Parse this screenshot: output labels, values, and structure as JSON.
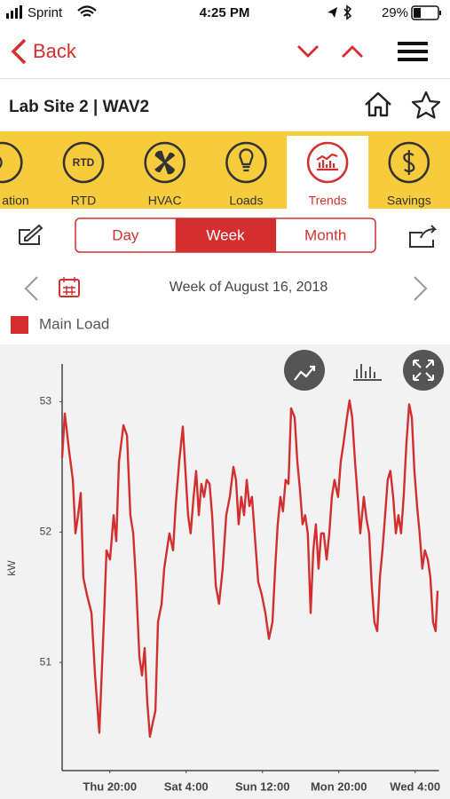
{
  "status": {
    "carrier": "Sprint",
    "time": "4:25 PM",
    "battery": "29%"
  },
  "nav": {
    "back": "Back"
  },
  "header": {
    "title": "Lab Site 2 | WAV2"
  },
  "tabs": [
    {
      "label": "ation"
    },
    {
      "label": "RTD",
      "icon_text": "RTD"
    },
    {
      "label": "HVAC"
    },
    {
      "label": "Loads"
    },
    {
      "label": "Trends"
    },
    {
      "label": "Savings"
    }
  ],
  "active_tab": 4,
  "periods": [
    "Day",
    "Week",
    "Month"
  ],
  "active_period": 1,
  "date_label": "Week of August 16, 2018",
  "chart_data": {
    "type": "line",
    "y_label": "kW",
    "x": [
      0,
      1.1,
      3.0,
      4.5,
      5.6,
      6.7,
      7.8,
      8.9,
      10.4,
      12.3,
      13.8,
      15.6,
      17.5,
      18.6,
      20.1,
      21.6,
      22.7,
      23.8,
      25.7,
      27.2,
      28.6,
      29.8,
      30.9,
      32.4,
      33.5,
      34.6,
      35.7,
      36.8,
      37.9,
      39.1,
      40.2,
      41.7,
      42.8,
      43.9,
      45.0,
      46.5,
      47.6,
      49.1,
      50.6,
      51.7,
      52.8,
      53.9,
      55.1,
      56.2,
      57.3,
      58.4,
      59.5,
      60.6,
      61.8,
      62.9,
      64.4,
      65.8,
      67.3,
      68.8,
      70.3,
      71.8,
      72.9,
      74.0,
      75.1,
      76.3,
      77.4,
      78.5,
      79.6,
      80.7,
      82.2,
      83.7,
      85.2,
      86.7,
      88.2,
      89.3,
      90.4,
      91.5,
      92.6,
      93.7,
      94.9,
      96.0,
      97.5,
      98.6,
      99.7,
      100.8,
      101.9,
      103.0,
      104.2,
      105.3,
      106.4,
      107.5,
      108.6,
      109.7,
      110.9,
      112.0,
      113.1,
      114.2,
      115.7,
      116.8,
      117.9,
      119.4,
      120.5,
      121.6,
      122.8,
      123.9,
      125.0,
      126.5,
      127.6,
      128.7,
      129.8,
      130.9,
      132.1,
      133.2,
      134.3,
      135.4,
      136.5,
      137.6,
      138.8,
      139.9,
      141.0,
      142.1,
      143.2,
      144.3,
      145.5,
      146.6,
      147.7,
      148.8,
      149.9,
      151.0,
      152.1,
      153.3,
      154.4,
      155.5,
      156.6,
      157.4
    ],
    "series": [
      {
        "name": "Main Load",
        "color": "#d32f2f",
        "values": [
          52.57,
          52.91,
          52.61,
          52.4,
          51.99,
          52.13,
          52.3,
          51.65,
          51.52,
          51.38,
          50.9,
          50.46,
          51.31,
          51.86,
          51.79,
          52.13,
          51.93,
          52.54,
          52.82,
          52.74,
          52.13,
          51.99,
          51.65,
          51.04,
          50.9,
          51.11,
          50.7,
          50.43,
          50.53,
          50.63,
          51.31,
          51.45,
          51.72,
          51.86,
          51.99,
          51.86,
          52.2,
          52.54,
          52.81,
          52.47,
          52.13,
          51.99,
          52.27,
          52.47,
          52.13,
          52.37,
          52.27,
          52.4,
          52.37,
          52.13,
          51.59,
          51.45,
          51.72,
          52.13,
          52.27,
          52.5,
          52.4,
          52.06,
          52.27,
          52.13,
          52.4,
          52.2,
          52.27,
          51.99,
          51.62,
          51.52,
          51.38,
          51.18,
          51.31,
          51.72,
          52.06,
          52.27,
          52.16,
          52.4,
          52.37,
          52.95,
          52.88,
          52.54,
          52.33,
          52.06,
          52.13,
          51.99,
          51.38,
          51.86,
          52.06,
          51.72,
          51.99,
          51.99,
          51.79,
          51.99,
          52.27,
          52.4,
          52.27,
          52.54,
          52.67,
          52.88,
          53.01,
          52.88,
          52.54,
          52.27,
          51.99,
          52.27,
          52.1,
          51.99,
          51.59,
          51.31,
          51.24,
          51.65,
          51.86,
          52.13,
          52.4,
          52.47,
          52.27,
          51.99,
          52.13,
          51.99,
          52.27,
          52.67,
          52.98,
          52.88,
          52.47,
          52.2,
          51.99,
          51.72,
          51.86,
          51.79,
          51.65,
          51.31,
          51.24,
          51.55
        ]
      }
    ],
    "xlim": [
      0,
      158
    ],
    "xticks": [
      {
        "value": 20,
        "label": "Thu 20:00"
      },
      {
        "value": 52,
        "label": "Sat 4:00"
      },
      {
        "value": 84,
        "label": "Sun 12:00"
      },
      {
        "value": 116,
        "label": "Mon 20:00"
      },
      {
        "value": 148,
        "label": "Wed 4:00"
      }
    ],
    "ylim": [
      50.17,
      53.29
    ],
    "yticks": [
      51,
      52,
      53
    ],
    "grid": false
  }
}
